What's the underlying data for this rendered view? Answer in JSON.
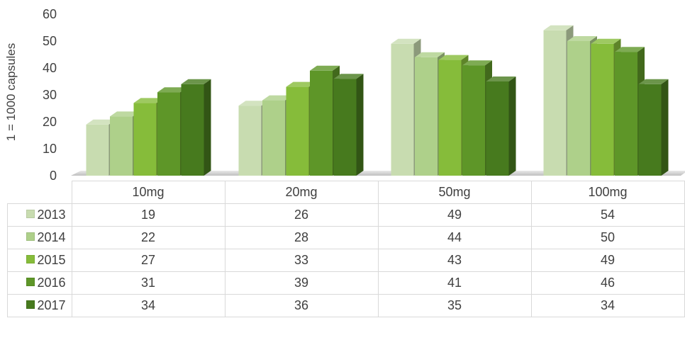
{
  "chart_data": {
    "type": "bar",
    "title": "",
    "xlabel": "",
    "ylabel": "1 = 1000 capsules",
    "ylim": [
      0,
      60
    ],
    "yticks": [
      0,
      10,
      20,
      30,
      40,
      50,
      60
    ],
    "categories": [
      "10mg",
      "20mg",
      "50mg",
      "100mg"
    ],
    "series": [
      {
        "name": "2013",
        "values": [
          19,
          26,
          49,
          54
        ],
        "color": "#c8dcb0"
      },
      {
        "name": "2014",
        "values": [
          22,
          28,
          44,
          50
        ],
        "color": "#aed08a"
      },
      {
        "name": "2015",
        "values": [
          27,
          33,
          43,
          49
        ],
        "color": "#86bc3a"
      },
      {
        "name": "2016",
        "values": [
          31,
          39,
          41,
          46
        ],
        "color": "#5e9628"
      },
      {
        "name": "2017",
        "values": [
          34,
          36,
          35,
          34
        ],
        "color": "#477a1e"
      }
    ],
    "data_table": true,
    "legend": "data table row headers",
    "grid": false
  }
}
